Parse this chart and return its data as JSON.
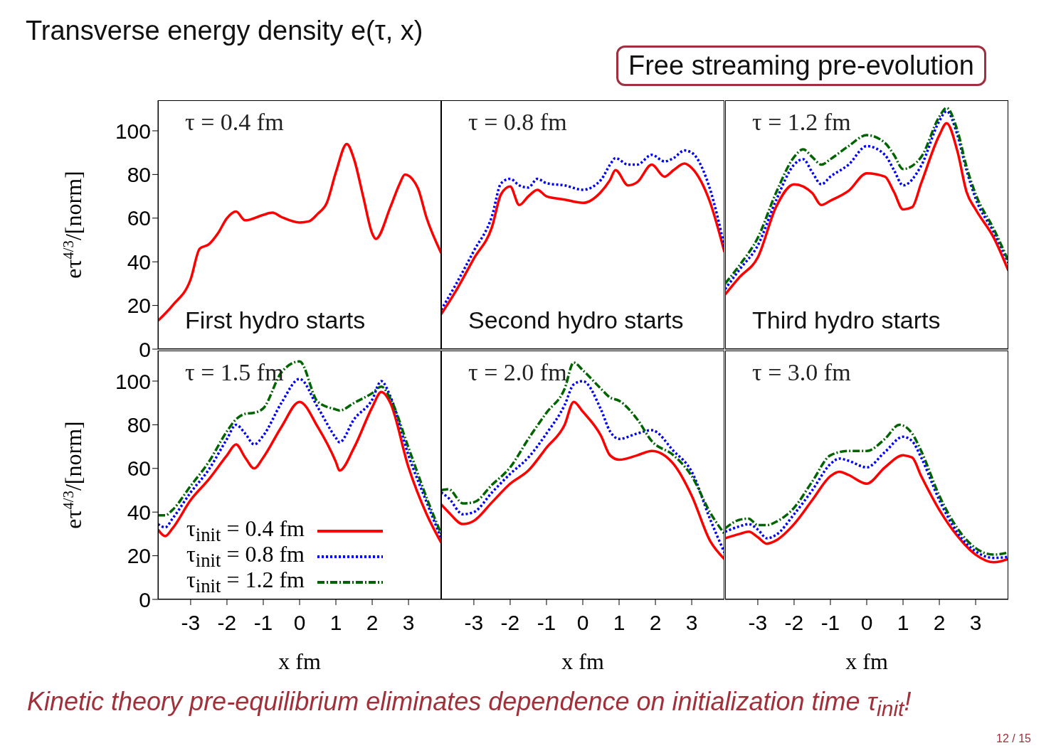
{
  "chart_data": [
    {
      "type": "line",
      "title": "Transverse energy density e(τ, x)",
      "subtitle": "τ = 0.4 fm",
      "ylabel": "eτ$^{4/3}$/[norm]",
      "xlim": [
        -3.9,
        3.9
      ],
      "ylim": [
        0,
        114
      ],
      "xticks": [
        -3,
        -2,
        -1,
        0,
        1,
        2,
        3
      ],
      "yticks": [
        0,
        20,
        40,
        60,
        80,
        100
      ],
      "tick_labels": "y",
      "annotations": [
        "First hydro starts",
        "Free streaming pre-evolution",
        "Kinetic theory pre-equilibrium eliminates dependence on initialization time τ$_{init}$!",
        "12 / 15"
      ],
      "series": [
        {
          "color": "#ff0000",
          "line_style": "solid",
          "x": [
            -3.9,
            -3.5,
            -3,
            -2.75,
            -2.5,
            -2.25,
            -2,
            -1.75,
            -1.5,
            -1,
            -0.75,
            -0.5,
            0,
            0.25,
            0.5,
            0.75,
            1,
            1.3,
            1.5,
            1.75,
            2,
            2.1,
            2.5,
            2.75,
            2.9,
            3.25,
            3.5,
            3.9
          ],
          "values": [
            13,
            20,
            32,
            46,
            48,
            53,
            60,
            63,
            59,
            61.5,
            62.5,
            60.5,
            58,
            58.5,
            62,
            67,
            81,
            94,
            87,
            70,
            53,
            50.5,
            65,
            75.5,
            80,
            74,
            60,
            44
          ]
        }
      ]
    },
    {
      "type": "line",
      "subtitle": "τ = 0.8 fm",
      "xlim": [
        -3.9,
        3.9
      ],
      "ylim": [
        0,
        114
      ],
      "xticks": [
        -3,
        -2,
        -1,
        0,
        1,
        2,
        3
      ],
      "yticks": [
        0,
        20,
        40,
        60,
        80,
        100
      ],
      "tick_labels": false,
      "annotations": [
        "Second hydro starts"
      ],
      "series": [
        {
          "color": "#ff0000",
          "line_style": "solid",
          "x": [
            -3.9,
            -3.5,
            -3,
            -2.5,
            -2.25,
            -2,
            -1.75,
            -1.5,
            -1.25,
            -1,
            -0.5,
            0,
            0.5,
            0.75,
            0.9,
            1.25,
            1.5,
            1.9,
            2.25,
            2.5,
            2.8,
            3,
            3.5,
            3.9
          ],
          "values": [
            16,
            26.5,
            41.5,
            56,
            71,
            74.5,
            66,
            70,
            73,
            70,
            68.5,
            67,
            72,
            77.5,
            82,
            75,
            76.5,
            84.5,
            79,
            82,
            85,
            83,
            67.5,
            44.5
          ]
        },
        {
          "color": "#0000ff",
          "line_style": "dotted",
          "x": [
            -3.9,
            -3.5,
            -3,
            -2.5,
            -2.25,
            -2,
            -1.75,
            -1.5,
            -1.25,
            -1,
            -0.5,
            0,
            0.5,
            0.75,
            0.9,
            1.25,
            1.5,
            1.9,
            2.25,
            2.5,
            2.8,
            3,
            3.5,
            3.9
          ],
          "values": [
            18,
            29.5,
            45,
            61,
            76,
            78,
            75,
            74,
            78,
            76,
            75,
            73,
            77.5,
            84.5,
            87.5,
            84.5,
            84.5,
            89,
            86,
            87.5,
            91,
            90,
            73.5,
            47
          ]
        }
      ]
    },
    {
      "type": "line",
      "subtitle": "τ = 1.2 fm",
      "xlim": [
        -3.9,
        3.9
      ],
      "ylim": [
        0,
        114
      ],
      "xticks": [
        -3,
        -2,
        -1,
        0,
        1,
        2,
        3
      ],
      "yticks": [
        0,
        20,
        40,
        60,
        80,
        100
      ],
      "tick_labels": false,
      "annotations": [
        "Third hydro starts"
      ],
      "series": [
        {
          "color": "#ff0000",
          "line_style": "solid",
          "x": [
            -3.9,
            -3.5,
            -3,
            -2.5,
            -2,
            -1.5,
            -1.25,
            -1,
            -0.5,
            0,
            0.5,
            0.75,
            1,
            1.25,
            1.5,
            2,
            2.2,
            2.5,
            2.75,
            3,
            3.5,
            3.9
          ],
          "values": [
            25,
            33,
            42,
            65,
            75.5,
            71.5,
            66,
            68,
            72.5,
            80.5,
            79,
            72,
            64,
            65,
            76,
            98,
            103.5,
            90.5,
            72,
            64,
            51,
            36
          ]
        },
        {
          "color": "#0000ff",
          "line_style": "dotted",
          "x": [
            -3.9,
            -3.5,
            -3,
            -2.5,
            -2,
            -1.75,
            -1.5,
            -1.25,
            -1,
            -0.5,
            0,
            0.5,
            0.75,
            1,
            1.5,
            2,
            2.2,
            2.5,
            2.75,
            3,
            3.5,
            3.9
          ],
          "values": [
            27.5,
            36.5,
            47.5,
            68,
            84.5,
            87,
            81,
            75.5,
            79,
            84.5,
            93,
            89,
            82,
            75,
            84,
            104.5,
            109,
            98,
            82,
            69,
            53.5,
            39.5
          ]
        },
        {
          "color": "#006400",
          "line_style": "dashed",
          "x": [
            -3.9,
            -3.5,
            -3,
            -2.5,
            -2,
            -1.75,
            -1.5,
            -1.25,
            -1,
            -0.5,
            0,
            0.5,
            0.75,
            1,
            1.5,
            2,
            2.2,
            2.5,
            2.75,
            3,
            3.5,
            3.9
          ],
          "values": [
            30,
            38.5,
            51,
            71.5,
            88,
            91.5,
            88,
            84.5,
            87,
            93,
            98,
            94.5,
            89,
            82.5,
            88,
            106.5,
            110.5,
            100,
            83.5,
            71,
            55,
            40.5
          ]
        }
      ]
    },
    {
      "type": "line",
      "subtitle": "τ = 1.5 fm",
      "xlabel": "x fm",
      "ylabel": "eτ$^{4/3}$/[norm]",
      "xlim": [
        -3.9,
        3.9
      ],
      "ylim": [
        0,
        114
      ],
      "xticks": [
        -3,
        -2,
        -1,
        0,
        1,
        2,
        3
      ],
      "yticks": [
        0,
        20,
        40,
        60,
        80,
        100
      ],
      "legend": "bottom left",
      "series": [
        {
          "name": "τ$_{init}$ = 0.4 fm",
          "color": "#ff0000",
          "line_style": "solid",
          "x": [
            -3.9,
            -3.7,
            -3.5,
            -3,
            -2.5,
            -2,
            -1.75,
            -1.5,
            -1.25,
            -1,
            -0.5,
            0,
            0.5,
            1,
            1.1,
            1.5,
            2,
            2.25,
            2.5,
            3,
            3.5,
            3.9
          ],
          "values": [
            32,
            29,
            32.5,
            45.5,
            55,
            66,
            71,
            65,
            60,
            65,
            79,
            90.5,
            79,
            63,
            59,
            69.5,
            88,
            95,
            90,
            60.5,
            39,
            26
          ]
        },
        {
          "name": "τ$_{init}$ = 0.8 fm",
          "color": "#0000ff",
          "line_style": "dotted",
          "x": [
            -3.9,
            -3.7,
            -3.5,
            -3,
            -2.5,
            -2,
            -1.75,
            -1.5,
            -1.25,
            -1,
            -0.5,
            0,
            0.5,
            1,
            1.1,
            1.5,
            2,
            2.25,
            2.5,
            3,
            3.5,
            3.9
          ],
          "values": [
            34.5,
            33,
            37,
            49,
            59.5,
            73.5,
            80,
            76,
            71,
            75,
            90,
            101,
            88,
            74,
            72,
            82.5,
            91.5,
            100,
            93,
            66,
            44.5,
            28
          ]
        },
        {
          "name": "τ$_{init}$ = 1.2 fm",
          "color": "#006400",
          "line_style": "dashed",
          "x": [
            -3.9,
            -3.7,
            -3.5,
            -3,
            -2.5,
            -2,
            -1.75,
            -1.5,
            -1.25,
            -1,
            -0.5,
            0,
            0.5,
            1,
            1.1,
            1.5,
            2,
            2.25,
            2.5,
            3,
            3.5,
            3.9
          ],
          "values": [
            38.5,
            38.5,
            41,
            52,
            63,
            77,
            82.5,
            85,
            85.5,
            87.5,
            104,
            109,
            90.5,
            87,
            86.5,
            90,
            94.5,
            97.5,
            92,
            69.5,
            46.5,
            30
          ]
        }
      ]
    },
    {
      "type": "line",
      "subtitle": "τ = 2.0 fm",
      "xlabel": "x fm",
      "xlim": [
        -3.9,
        3.9
      ],
      "ylim": [
        0,
        114
      ],
      "xticks": [
        -3,
        -2,
        -1,
        0,
        1,
        2,
        3
      ],
      "yticks": [
        0,
        20,
        40,
        60,
        80,
        100
      ],
      "tick_labels": "x",
      "series": [
        {
          "color": "#ff0000",
          "line_style": "solid",
          "x": [
            -3.9,
            -3.7,
            -3.3,
            -3,
            -2.5,
            -2,
            -1.5,
            -1,
            -0.5,
            -0.25,
            0,
            0.5,
            0.75,
            1,
            1.5,
            1.9,
            2.5,
            3,
            3.5,
            3.9
          ],
          "values": [
            43.5,
            40,
            34.5,
            36,
            44.5,
            53,
            59,
            69.5,
            80,
            90.5,
            86,
            75,
            66,
            64,
            66,
            68,
            62,
            47.5,
            27,
            18.5
          ]
        },
        {
          "color": "#0000ff",
          "line_style": "dotted",
          "x": [
            -3.9,
            -3.7,
            -3.3,
            -3,
            -2.5,
            -2,
            -1.5,
            -1,
            -0.5,
            -0.25,
            0,
            0.5,
            0.75,
            1,
            1.5,
            1.9,
            2.5,
            3,
            3.5,
            3.9
          ],
          "values": [
            49,
            46.5,
            39,
            40,
            49,
            57.5,
            65,
            76,
            89,
            98.5,
            100,
            87,
            77,
            73.5,
            76,
            77.5,
            68,
            58.5,
            37,
            21.5
          ]
        },
        {
          "color": "#006400",
          "line_style": "dashed",
          "x": [
            -3.9,
            -3.7,
            -3.3,
            -3,
            -2.5,
            -2,
            -1.5,
            -1,
            -0.5,
            -0.25,
            0,
            0.5,
            0.75,
            1,
            1.5,
            1.9,
            2.5,
            3,
            3.5,
            3.9
          ],
          "values": [
            50,
            50.5,
            44,
            44.5,
            52.5,
            60.5,
            73.5,
            85.5,
            96.5,
            108.5,
            105,
            96.5,
            92.5,
            91,
            82.5,
            72.5,
            66,
            56.5,
            40,
            30
          ]
        }
      ]
    },
    {
      "type": "line",
      "subtitle": "τ = 3.0 fm",
      "xlabel": "x fm",
      "xlim": [
        -3.9,
        3.9
      ],
      "ylim": [
        0,
        114
      ],
      "xticks": [
        -3,
        -2,
        -1,
        0,
        1,
        2,
        3
      ],
      "yticks": [
        0,
        20,
        40,
        60,
        80,
        100
      ],
      "tick_labels": "x",
      "series": [
        {
          "color": "#ff0000",
          "line_style": "solid",
          "x": [
            -3.9,
            -3.5,
            -3.25,
            -3,
            -2.75,
            -2.5,
            -2,
            -1.5,
            -1,
            -0.75,
            -0.5,
            0,
            0.5,
            1,
            1.25,
            1.5,
            2,
            2.5,
            3,
            3.5,
            3.9
          ],
          "values": [
            28,
            30,
            31,
            28.5,
            25.5,
            27,
            34.5,
            45.5,
            56.5,
            58.5,
            57,
            53,
            60.5,
            66,
            65,
            56.5,
            41,
            29,
            20.5,
            17,
            18.5
          ]
        },
        {
          "color": "#0000ff",
          "line_style": "dotted",
          "x": [
            -3.9,
            -3.5,
            -3.25,
            -3,
            -2.75,
            -2.5,
            -2,
            -1.5,
            -1,
            -0.75,
            -0.5,
            0,
            0.5,
            1,
            1.25,
            1.5,
            2,
            2.5,
            3,
            3.5,
            3.9
          ],
          "values": [
            31,
            33.5,
            34.5,
            32,
            28,
            29.5,
            39,
            50,
            62,
            64.5,
            63.5,
            60.5,
            67.5,
            74.5,
            72.5,
            65,
            45.5,
            30.5,
            22,
            19,
            19.5
          ]
        },
        {
          "color": "#006400",
          "line_style": "dashed",
          "x": [
            -3.9,
            -3.5,
            -3.25,
            -3,
            -2.75,
            -2.5,
            -2,
            -1.5,
            -1,
            -0.5,
            0,
            0.5,
            0.9,
            1.25,
            1.5,
            2,
            2.5,
            3,
            3.5,
            3.9
          ],
          "values": [
            32.5,
            36.5,
            37,
            34,
            34,
            35.5,
            42,
            54,
            66,
            68,
            68,
            73.5,
            80,
            76,
            68,
            47.5,
            32.5,
            23.5,
            20.5,
            21.5
          ]
        }
      ]
    }
  ]
}
